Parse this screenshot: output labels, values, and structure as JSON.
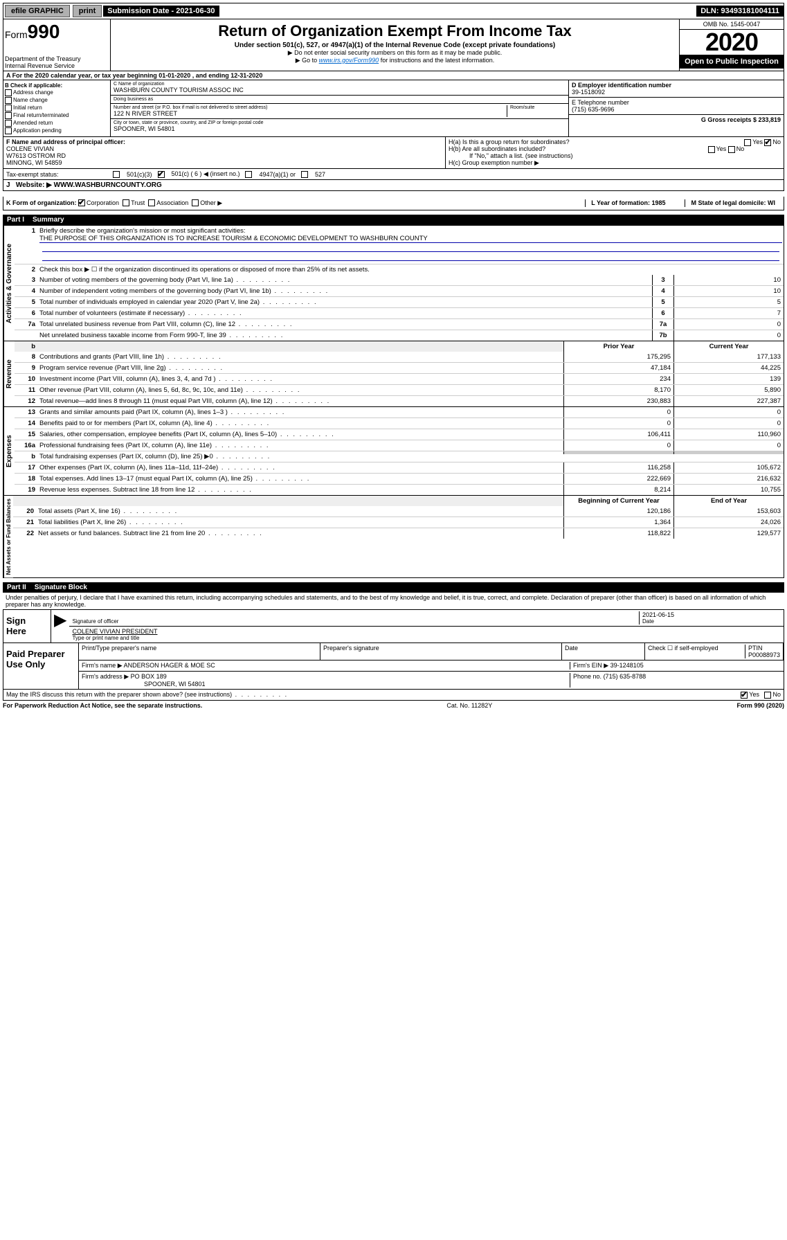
{
  "topbar": {
    "efile": "efile GRAPHIC",
    "print": "print",
    "submission_label": "Submission Date - 2021-06-30",
    "dln": "DLN: 93493181004111"
  },
  "header": {
    "form_label": "Form",
    "form_number": "990",
    "dept1": "Department of the Treasury",
    "dept2": "Internal Revenue Service",
    "title": "Return of Organization Exempt From Income Tax",
    "subtitle": "Under section 501(c), 527, or 4947(a)(1) of the Internal Revenue Code (except private foundations)",
    "note1": "▶ Do not enter social security numbers on this form as it may be made public.",
    "note2_pre": "▶ Go to ",
    "note2_link": "www.irs.gov/Form990",
    "note2_post": " for instructions and the latest information.",
    "omb": "OMB No. 1545-0047",
    "year": "2020",
    "open": "Open to Public Inspection"
  },
  "row_a": "A For the 2020 calendar year, or tax year beginning 01-01-2020    , and ending 12-31-2020",
  "box_b": {
    "title": "B Check if applicable:",
    "opts": [
      "Address change",
      "Name change",
      "Initial return",
      "Final return/terminated",
      "Amended return",
      "Application pending"
    ]
  },
  "box_c": {
    "name_label": "C Name of organization",
    "name": "WASHBURN COUNTY TOURISM ASSOC INC",
    "dba_label": "Doing business as",
    "dba": "",
    "addr_label": "Number and street (or P.O. box if mail is not delivered to street address)",
    "room_label": "Room/suite",
    "addr": "122 N RIVER STREET",
    "city_label": "City or town, state or province, country, and ZIP or foreign postal code",
    "city": "SPOONER, WI  54801"
  },
  "box_d": {
    "label": "D Employer identification number",
    "val": "39-1518092"
  },
  "box_e": {
    "label": "E Telephone number",
    "val": "(715) 635-9696"
  },
  "box_g": {
    "label": "G Gross receipts $ 233,819"
  },
  "box_f": {
    "label": "F  Name and address of principal officer:",
    "l1": "COLENE VIVIAN",
    "l2": "W7613 OSTROM RD",
    "l3": "MINONG, WI  54859"
  },
  "box_h": {
    "a": "H(a)  Is this a group return for subordinates?",
    "b": "H(b)  Are all subordinates included?",
    "b_note": "If \"No,\" attach a list. (see instructions)",
    "c": "H(c)  Group exemption number ▶",
    "yes": "Yes",
    "no": "No"
  },
  "tax_status": {
    "label": "Tax-exempt status:",
    "o1": "501(c)(3)",
    "o2": "501(c) ( 6 ) ◀ (insert no.)",
    "o3": "4947(a)(1) or",
    "o4": "527"
  },
  "row_j": {
    "label": "J",
    "text": "Website: ▶  WWW.WASHBURNCOUNTY.ORG"
  },
  "row_k": {
    "label": "K Form of organization:",
    "opts": [
      "Corporation",
      "Trust",
      "Association",
      "Other ▶"
    ],
    "l_label": "L Year of formation: 1985",
    "m_label": "M State of legal domicile: WI"
  },
  "part1": {
    "title": "Part I",
    "sub": "Summary"
  },
  "mission": {
    "num": "1",
    "label": "Briefly describe the organization's mission or most significant activities:",
    "text": "THE PURPOSE OF THIS ORGANIZATION IS TO INCREASE TOURISM & ECONOMIC DEVELOPMENT TO WASHBURN COUNTY"
  },
  "gov": {
    "side": "Activities & Governance",
    "l2": "Check this box ▶ ☐  if the organization discontinued its operations or disposed of more than 25% of its net assets.",
    "rows": [
      {
        "n": "3",
        "d": "Number of voting members of the governing body (Part VI, line 1a)",
        "c": "3",
        "v": "10"
      },
      {
        "n": "4",
        "d": "Number of independent voting members of the governing body (Part VI, line 1b)",
        "c": "4",
        "v": "10"
      },
      {
        "n": "5",
        "d": "Total number of individuals employed in calendar year 2020 (Part V, line 2a)",
        "c": "5",
        "v": "5"
      },
      {
        "n": "6",
        "d": "Total number of volunteers (estimate if necessary)",
        "c": "6",
        "v": "7"
      },
      {
        "n": "7a",
        "d": "Total unrelated business revenue from Part VIII, column (C), line 12",
        "c": "7a",
        "v": "0"
      },
      {
        "n": "",
        "d": "Net unrelated business taxable income from Form 990-T, line 39",
        "c": "7b",
        "v": "0"
      }
    ]
  },
  "rev": {
    "side": "Revenue",
    "head_b": "b",
    "col1": "Prior Year",
    "col2": "Current Year",
    "rows": [
      {
        "n": "8",
        "d": "Contributions and grants (Part VIII, line 1h)",
        "p": "175,295",
        "c": "177,133"
      },
      {
        "n": "9",
        "d": "Program service revenue (Part VIII, line 2g)",
        "p": "47,184",
        "c": "44,225"
      },
      {
        "n": "10",
        "d": "Investment income (Part VIII, column (A), lines 3, 4, and 7d )",
        "p": "234",
        "c": "139"
      },
      {
        "n": "11",
        "d": "Other revenue (Part VIII, column (A), lines 5, 6d, 8c, 9c, 10c, and 11e)",
        "p": "8,170",
        "c": "5,890"
      },
      {
        "n": "12",
        "d": "Total revenue—add lines 8 through 11 (must equal Part VIII, column (A), line 12)",
        "p": "230,883",
        "c": "227,387"
      }
    ]
  },
  "exp": {
    "side": "Expenses",
    "rows": [
      {
        "n": "13",
        "d": "Grants and similar amounts paid (Part IX, column (A), lines 1–3 )",
        "p": "0",
        "c": "0"
      },
      {
        "n": "14",
        "d": "Benefits paid to or for members (Part IX, column (A), line 4)",
        "p": "0",
        "c": "0"
      },
      {
        "n": "15",
        "d": "Salaries, other compensation, employee benefits (Part IX, column (A), lines 5–10)",
        "p": "106,411",
        "c": "110,960"
      },
      {
        "n": "16a",
        "d": "Professional fundraising fees (Part IX, column (A), line 11e)",
        "p": "0",
        "c": "0"
      },
      {
        "n": "b",
        "d": "Total fundraising expenses (Part IX, column (D), line 25) ▶0",
        "p": "",
        "c": ""
      },
      {
        "n": "17",
        "d": "Other expenses (Part IX, column (A), lines 11a–11d, 11f–24e)",
        "p": "116,258",
        "c": "105,672"
      },
      {
        "n": "18",
        "d": "Total expenses. Add lines 13–17 (must equal Part IX, column (A), line 25)",
        "p": "222,669",
        "c": "216,632"
      },
      {
        "n": "19",
        "d": "Revenue less expenses. Subtract line 18 from line 12",
        "p": "8,214",
        "c": "10,755"
      }
    ]
  },
  "net": {
    "side": "Net Assets or Fund Balances",
    "col1": "Beginning of Current Year",
    "col2": "End of Year",
    "rows": [
      {
        "n": "20",
        "d": "Total assets (Part X, line 16)",
        "p": "120,186",
        "c": "153,603"
      },
      {
        "n": "21",
        "d": "Total liabilities (Part X, line 26)",
        "p": "1,364",
        "c": "24,026"
      },
      {
        "n": "22",
        "d": "Net assets or fund balances. Subtract line 21 from line 20",
        "p": "118,822",
        "c": "129,577"
      }
    ]
  },
  "part2": {
    "title": "Part II",
    "sub": "Signature Block"
  },
  "penalty": "Under penalties of perjury, I declare that I have examined this return, including accompanying schedules and statements, and to the best of my knowledge and belief, it is true, correct, and complete. Declaration of preparer (other than officer) is based on all information of which preparer has any knowledge.",
  "sign": {
    "here": "Sign Here",
    "sig_officer": "Signature of officer",
    "date_val": "2021-06-15",
    "date": "Date",
    "name": "COLENE VIVIAN  PRESIDENT",
    "name_label": "Type or print name and title"
  },
  "paid": {
    "label": "Paid Preparer Use Only",
    "h1": "Print/Type preparer's name",
    "h2": "Preparer's signature",
    "h3": "Date",
    "h4_check": "Check ☐ if self-employed",
    "h4_ptin": "PTIN",
    "ptin": "P00088973",
    "firm_name_l": "Firm's name    ▶",
    "firm_name": "ANDERSON HAGER & MOE SC",
    "firm_ein_l": "Firm's EIN ▶",
    "firm_ein": "39-1248105",
    "firm_addr_l": "Firm's address ▶",
    "firm_addr1": "PO BOX 189",
    "firm_addr2": "SPOONER, WI  54801",
    "phone_l": "Phone no.",
    "phone": "(715) 635-8788"
  },
  "discuss": {
    "q": "May the IRS discuss this return with the preparer shown above? (see instructions)",
    "yes": "Yes",
    "no": "No"
  },
  "footer": {
    "pra": "For Paperwork Reduction Act Notice, see the separate instructions.",
    "cat": "Cat. No. 11282Y",
    "form": "Form 990 (2020)"
  }
}
